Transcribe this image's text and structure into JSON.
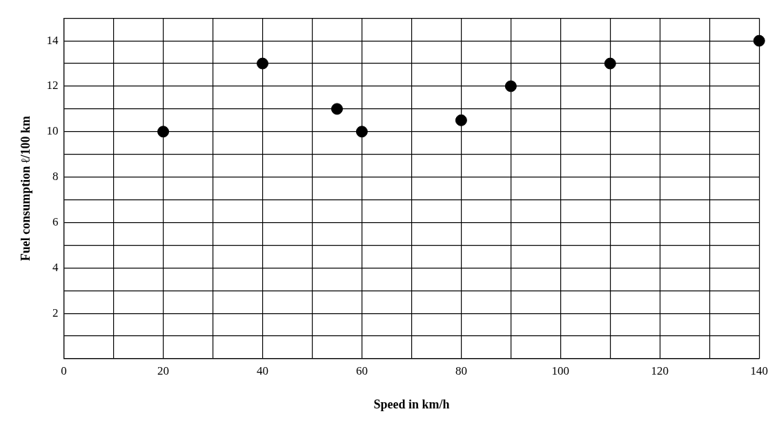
{
  "chart_data": {
    "type": "scatter",
    "xlabel": "Speed in km/h",
    "ylabel": "Fuel consumption ℓ/100 km",
    "series": [
      {
        "color": "#000000",
        "x": [
          20,
          40,
          55,
          60,
          80,
          90,
          110,
          140
        ],
        "values": [
          10,
          13,
          11,
          10,
          10.5,
          12,
          13,
          14
        ]
      }
    ],
    "xlim": [
      0,
      140
    ],
    "ylim": [
      0,
      15
    ],
    "xticks": [
      0,
      {
        "value": 10,
        "label": null
      },
      20,
      {
        "value": 30,
        "label": null
      },
      40,
      {
        "value": 50,
        "label": null
      },
      60,
      {
        "value": 70,
        "label": null
      },
      80,
      {
        "value": 90,
        "label": null
      },
      100,
      {
        "value": 110,
        "label": null
      },
      120,
      {
        "value": 130,
        "label": null
      },
      140
    ],
    "yticks": [
      {
        "value": 0,
        "label": null
      },
      {
        "value": 1,
        "label": null
      },
      2,
      {
        "value": 3,
        "label": null
      },
      4,
      {
        "value": 5,
        "label": null
      },
      6,
      {
        "value": 7,
        "label": null
      },
      8,
      {
        "value": 9,
        "label": null
      },
      10,
      {
        "value": 11,
        "label": null
      },
      12,
      {
        "value": 13,
        "label": null
      },
      14,
      {
        "value": 15,
        "label": null
      }
    ],
    "grid": true,
    "legend": false,
    "marker": "circle"
  }
}
